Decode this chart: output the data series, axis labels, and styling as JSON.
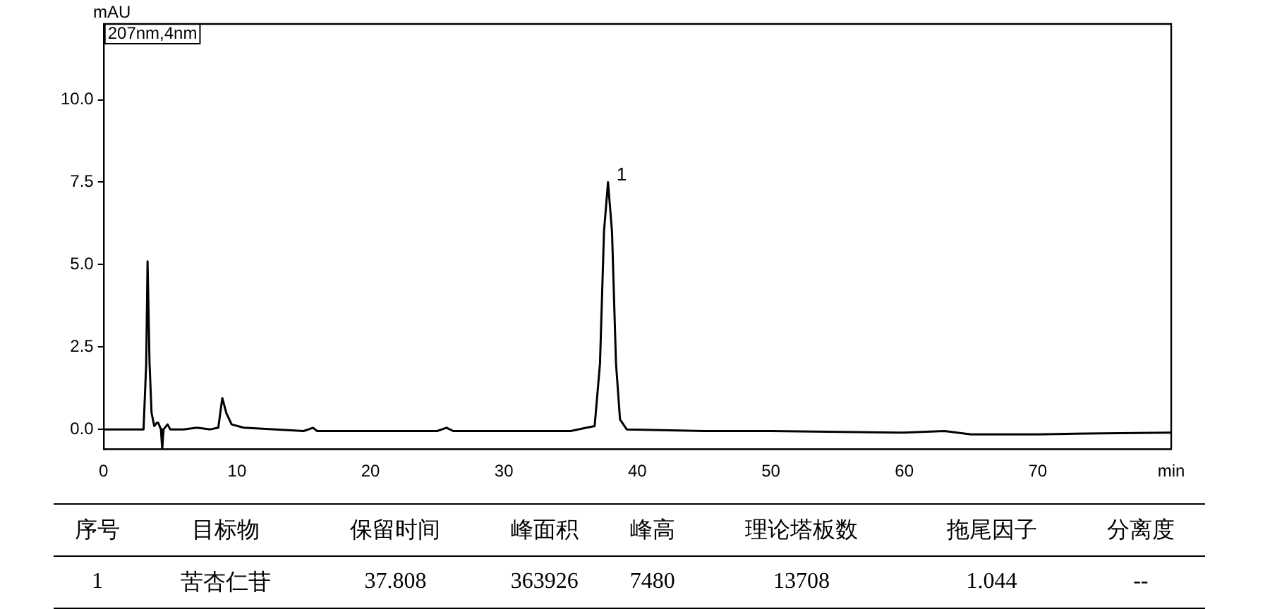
{
  "chart_data": {
    "type": "line",
    "ylabel": "mAU",
    "color": "#000000",
    "x": [
      0,
      3.0,
      3.2,
      3.3,
      3.45,
      3.6,
      3.8,
      4.0,
      4.1,
      4.3,
      4.4,
      4.5,
      4.8,
      5.0,
      6,
      7,
      8,
      8.6,
      8.9,
      9.2,
      9.6,
      10.5,
      15,
      15.7,
      16,
      25,
      25.7,
      26.2,
      35,
      36.2,
      36.8,
      37.2,
      37.5,
      37.8,
      38.1,
      38.4,
      38.7,
      39.2,
      45,
      50,
      60,
      63,
      65,
      70,
      75,
      80
    ],
    "values": [
      0.0,
      0.0,
      2.0,
      5.1,
      2.0,
      0.5,
      0.1,
      0.2,
      0.2,
      0.0,
      -0.6,
      0.0,
      0.15,
      0.0,
      0.0,
      0.05,
      0.0,
      0.05,
      0.95,
      0.5,
      0.15,
      0.05,
      -0.05,
      0.05,
      -0.05,
      -0.05,
      0.05,
      -0.05,
      -0.05,
      0.05,
      0.1,
      2.0,
      6.0,
      7.5,
      6.0,
      2.0,
      0.3,
      0.0,
      -0.05,
      -0.05,
      -0.1,
      -0.05,
      -0.15,
      -0.15,
      -0.12,
      -0.1
    ],
    "xlim": [
      0,
      80
    ],
    "xticks": [
      0,
      10,
      20,
      30,
      40,
      50,
      60,
      70,
      {
        "value": 80,
        "label": "min"
      }
    ],
    "ylim": [
      -0.6,
      12.3
    ],
    "yticks": [
      {
        "value": 0,
        "label": "0.0"
      },
      {
        "value": 2.5,
        "label": "2.5"
      },
      {
        "value": 5,
        "label": "5.0"
      },
      {
        "value": 7.5,
        "label": "7.5"
      },
      {
        "value": 10,
        "label": "10.0"
      }
    ],
    "marker": "none",
    "line_style": "solid",
    "annotations": [
      "207nm,4nm",
      {
        "text": "1",
        "x": 37.8,
        "y": 7.5
      },
      "序号",
      "目标物",
      "保留时间",
      "峰面积",
      "峰高",
      "理论塔板数",
      "拖尾因子",
      "分离度",
      "1",
      "苦杏仁苷",
      "37.808",
      "363926",
      "7480",
      "13708",
      "1.044",
      "--"
    ]
  }
}
